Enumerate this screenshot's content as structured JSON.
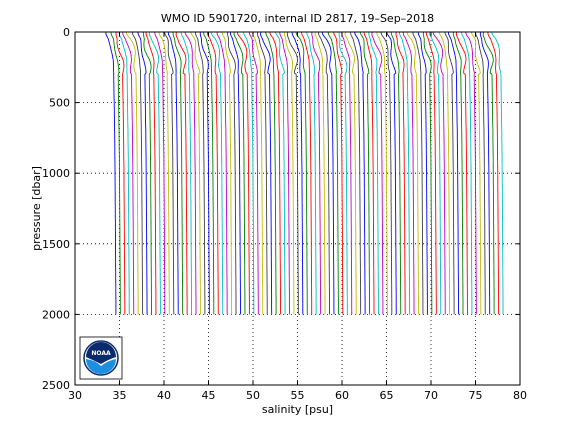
{
  "chart_data": {
    "type": "line",
    "title": "WMO ID 5901720, internal ID 2817, 19–Sep–2018",
    "xlabel": "salinity [psu]",
    "ylabel": "pressure [dbar]",
    "xlim": [
      30,
      80
    ],
    "ylim": [
      0,
      2500
    ],
    "y_reversed": true,
    "grid": "dotted",
    "xticks": [
      30,
      35,
      40,
      45,
      50,
      55,
      60,
      65,
      70,
      75,
      80
    ],
    "yticks": [
      0,
      500,
      1000,
      1500,
      2000,
      2500
    ],
    "profiles": {
      "count": 88,
      "first_offset_psu": 34.3,
      "offset_step_psu": 0.5,
      "max_pressure_dbar": 2000,
      "pressure": [
        0,
        20,
        50,
        100,
        150,
        200,
        300,
        500,
        700,
        1000,
        1500,
        2000
      ],
      "salinity_anomaly": [
        -0.85,
        -0.8,
        -0.55,
        -0.35,
        -0.15,
        0.0,
        0.05,
        0.1,
        0.15,
        0.2,
        0.25,
        0.3
      ]
    },
    "colors": [
      "#0000ff",
      "#008000",
      "#ff0000",
      "#00bfbf",
      "#bf00bf",
      "#bfbf00",
      "#404040"
    ],
    "logo": "NOAA"
  }
}
